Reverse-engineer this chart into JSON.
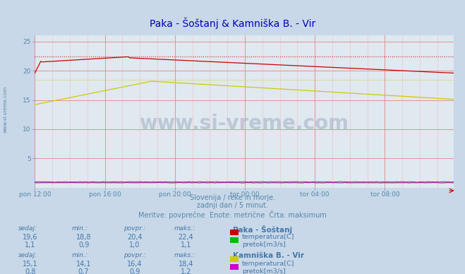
{
  "title": "Paka - Šoštanj & Kamniška B. - Vir",
  "title_color": "#0000bb",
  "bg_color": "#c8d8e8",
  "plot_bg_color": "#e0e8f0",
  "grid_color_major": "#dd8888",
  "grid_color_minor": "#f0c0c0",
  "tick_label_color": "#5588aa",
  "xtick_labels": [
    "pon 12:00",
    "pon 16:00",
    "pon 20:00",
    "tor 00:00",
    "tor 04:00",
    "tor 08:00"
  ],
  "xtick_positions": [
    0,
    48,
    96,
    144,
    192,
    240
  ],
  "ytick_positions": [
    5,
    10,
    15,
    20,
    25
  ],
  "ylim": [
    0,
    26
  ],
  "xlim": [
    0,
    287
  ],
  "subtitle1": "Slovenija / reke in morje.",
  "subtitle2": "zadnji dan / 5 minut.",
  "subtitle3": "Meritve: povprečne  Enote: metrične  Črta: maksimum",
  "subtitle_color": "#5588aa",
  "watermark": "www.si-vreme.com",
  "watermark_color": "#1a3a6a",
  "watermark_alpha": 0.18,
  "paka_temp_color": "#cc0000",
  "paka_temp_max": 22.4,
  "paka_flow_color": "#00bb00",
  "paka_flow_max": 1.1,
  "kamb_temp_color": "#cccc00",
  "kamb_temp_max": 18.4,
  "kamb_flow_color": "#cc00cc",
  "kamb_flow_max": 1.2,
  "info_text_color": "#4477aa",
  "station1_name": "Paka - Šoštanj",
  "station2_name": "Kamniška B. - Vir",
  "s1_sedaj_temp": "19,6",
  "s1_min_temp": "18,8",
  "s1_povpr_temp": "20,4",
  "s1_maks_temp": "22,4",
  "s1_sedaj_flow": "1,1",
  "s1_min_flow": "0,9",
  "s1_povpr_flow": "1,0",
  "s1_maks_flow": "1,1",
  "s2_sedaj_temp": "15,1",
  "s2_min_temp": "14,1",
  "s2_povpr_temp": "16,4",
  "s2_maks_temp": "18,4",
  "s2_sedaj_flow": "0,8",
  "s2_min_flow": "0,7",
  "s2_povpr_flow": "0,9",
  "s2_maks_flow": "1,2",
  "col_headers": [
    "sedaj:",
    "min.:",
    "povpr.:",
    "maks.:"
  ]
}
